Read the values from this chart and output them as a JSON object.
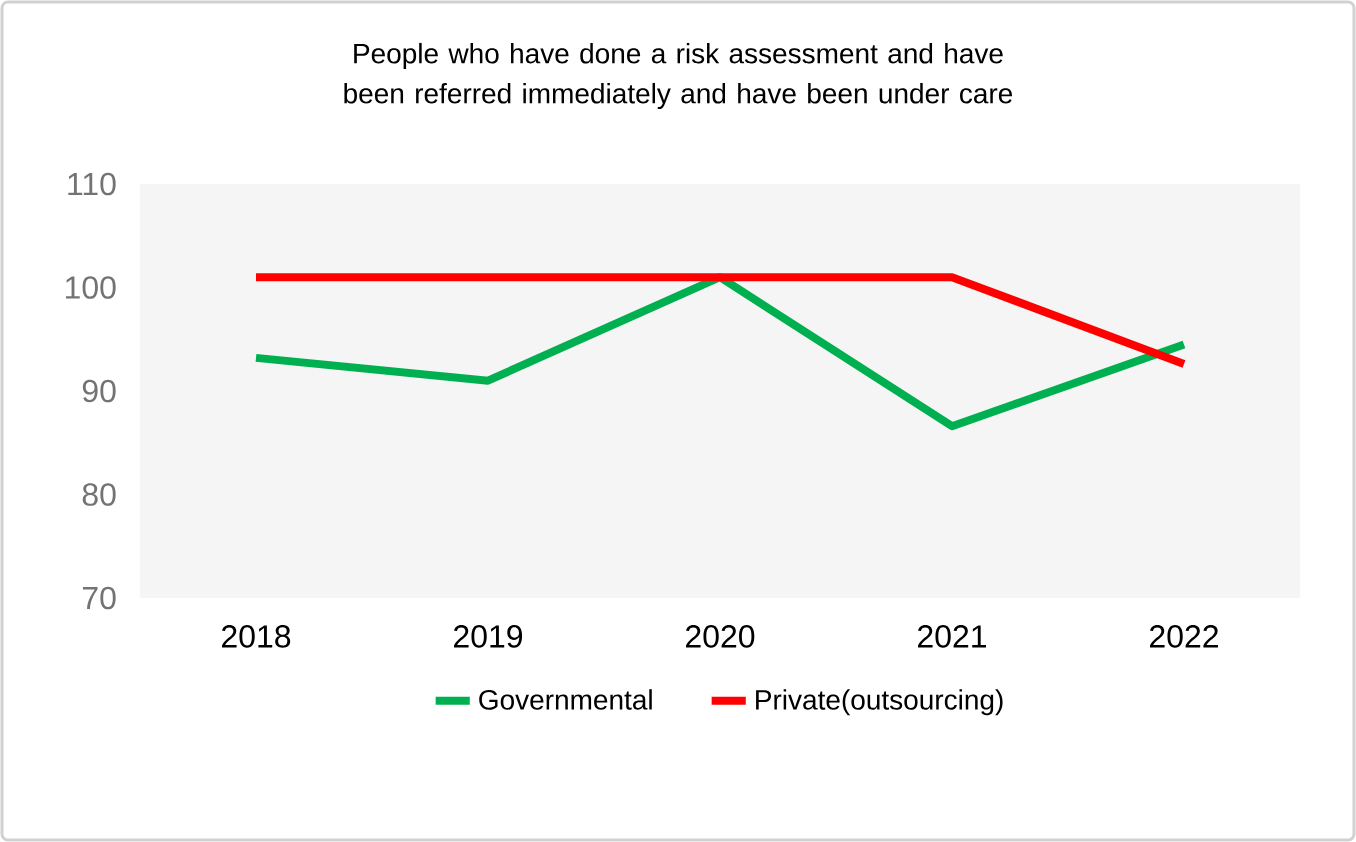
{
  "chart_data": {
    "type": "line",
    "title": "People who have done a risk assessment and have been referred immediately and have been under care",
    "categories": [
      "2018",
      "2019",
      "2020",
      "2021",
      "2022"
    ],
    "series": [
      {
        "name": "Governmental",
        "color": "#00b050",
        "values": [
          93.2,
          91,
          101,
          86.6,
          94.5
        ]
      },
      {
        "name": "Private(outsourcing)",
        "color": "#ff0000",
        "values": [
          101,
          101,
          101,
          101,
          92.6
        ]
      }
    ],
    "ylim": [
      70,
      110
    ],
    "yticks": [
      70,
      80,
      90,
      100,
      110
    ],
    "grid": false,
    "legend": "bottom",
    "marker": "none",
    "line_style": "solid"
  }
}
